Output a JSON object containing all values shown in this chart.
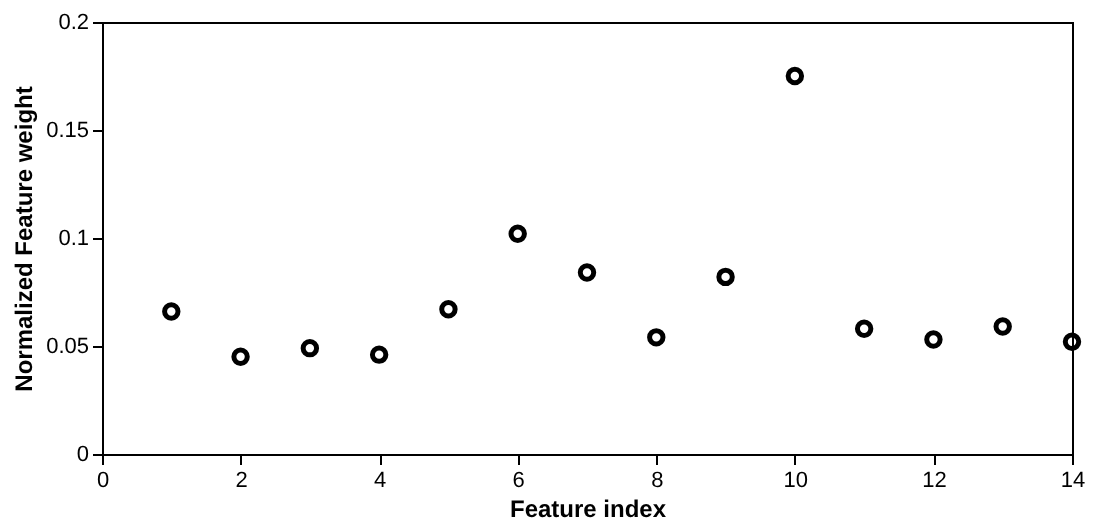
{
  "chart_data": {
    "type": "scatter",
    "xlabel": "Feature index",
    "ylabel": "Normalized Feature weight",
    "x": [
      1,
      2,
      3,
      4,
      5,
      6,
      7,
      8,
      9,
      10,
      11,
      12,
      13,
      14
    ],
    "series": [
      {
        "color": "#000000",
        "values": [
          0.066,
          0.045,
          0.049,
          0.046,
          0.067,
          0.102,
          0.084,
          0.054,
          0.082,
          0.175,
          0.058,
          0.053,
          0.059,
          0.052
        ]
      }
    ],
    "marker": "circle",
    "grid": false,
    "legend": false,
    "xlim": [
      0,
      14
    ],
    "xticks": [
      0,
      2,
      4,
      6,
      8,
      10,
      12,
      14
    ],
    "ylim": [
      0,
      0.2
    ],
    "yticks": [
      0,
      0.05,
      0.1,
      0.15,
      0.2
    ]
  }
}
